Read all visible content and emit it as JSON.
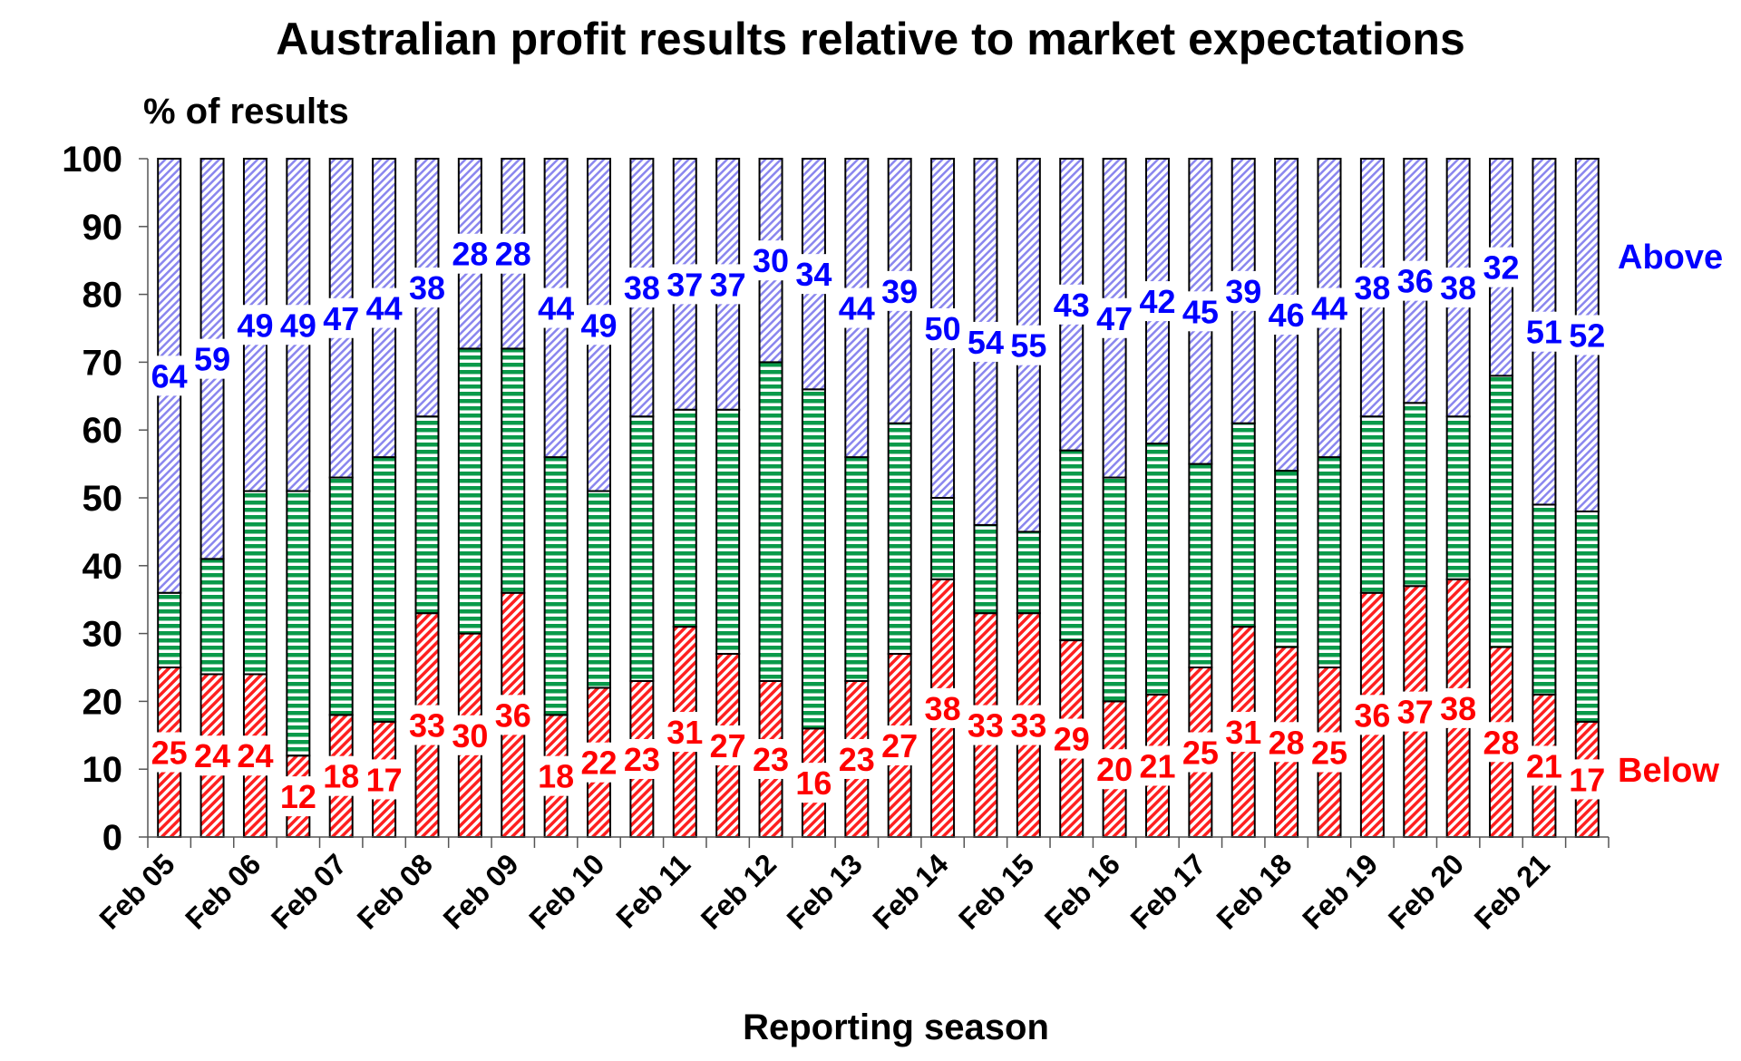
{
  "chart_data": {
    "type": "bar",
    "stacked": true,
    "title": "Australian profit results relative to market expectations",
    "ylabel": "% of results",
    "xlabel": "Reporting season",
    "ylim": [
      0,
      100
    ],
    "yticks": [
      0,
      10,
      20,
      30,
      40,
      50,
      60,
      70,
      80,
      90,
      100
    ],
    "grid": false,
    "tick_labels": [
      "Feb 05",
      "Feb 06",
      "Feb 07",
      "Feb 08",
      "Feb 09",
      "Feb 10",
      "Feb 11",
      "Feb 12",
      "Feb 13",
      "Feb 14",
      "Feb 15",
      "Feb 16",
      "Feb 17",
      "Feb 18",
      "Feb 19",
      "Feb 20",
      "Feb 21"
    ],
    "series": [
      {
        "name": "Below",
        "color": "#ff0000",
        "values": [
          25,
          24,
          24,
          12,
          18,
          17,
          33,
          30,
          36,
          18,
          22,
          23,
          31,
          27,
          23,
          16,
          23,
          27,
          38,
          33,
          33,
          29,
          20,
          21,
          25,
          31,
          28,
          25,
          36,
          37,
          38,
          28,
          21,
          17
        ]
      },
      {
        "name": "",
        "color": "#009933",
        "values": [
          11,
          17,
          27,
          39,
          35,
          39,
          29,
          42,
          36,
          38,
          29,
          39,
          32,
          36,
          47,
          50,
          33,
          34,
          12,
          13,
          12,
          28,
          33,
          37,
          30,
          30,
          26,
          31,
          26,
          27,
          24,
          40,
          28,
          31
        ]
      },
      {
        "name": "Above",
        "color": "#0000ff",
        "values": [
          64,
          59,
          49,
          49,
          47,
          44,
          38,
          28,
          28,
          44,
          49,
          38,
          37,
          37,
          30,
          34,
          44,
          39,
          50,
          54,
          55,
          43,
          47,
          42,
          45,
          39,
          46,
          44,
          38,
          36,
          38,
          32,
          51,
          52
        ]
      }
    ]
  }
}
